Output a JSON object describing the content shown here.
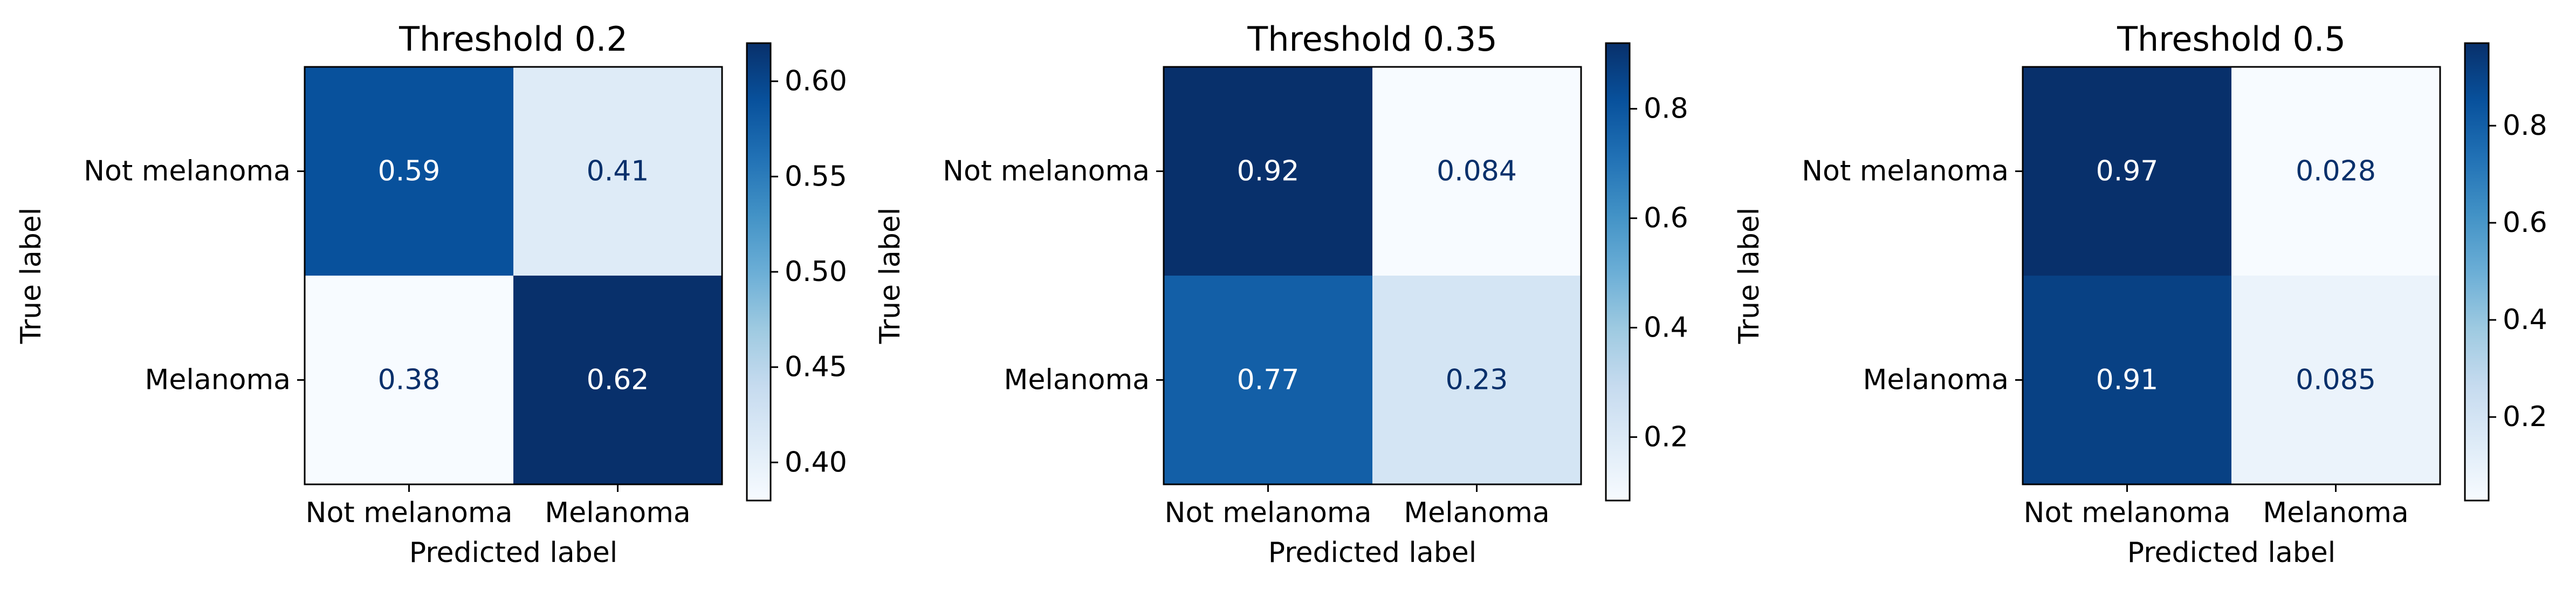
{
  "chart_data": [
    {
      "type": "heatmap",
      "title": "Threshold 0.2",
      "xlabel": "Predicted label",
      "ylabel": "True label",
      "x_categories": [
        "Not melanoma",
        "Melanoma"
      ],
      "y_categories": [
        "Not melanoma",
        "Melanoma"
      ],
      "values": [
        [
          0.59,
          0.41
        ],
        [
          0.38,
          0.62
        ]
      ],
      "value_labels": [
        [
          "0.59",
          "0.41"
        ],
        [
          "0.38",
          "0.62"
        ]
      ],
      "colormap": "Blues",
      "colorbar": {
        "range": [
          0.38,
          0.62
        ],
        "ticks": [
          0.4,
          0.45,
          0.5,
          0.55,
          0.6
        ],
        "tick_labels": [
          "0.40",
          "0.45",
          "0.50",
          "0.55",
          "0.60"
        ]
      }
    },
    {
      "type": "heatmap",
      "title": "Threshold 0.35",
      "xlabel": "Predicted label",
      "ylabel": "True label",
      "x_categories": [
        "Not melanoma",
        "Melanoma"
      ],
      "y_categories": [
        "Not melanoma",
        "Melanoma"
      ],
      "values": [
        [
          0.92,
          0.084
        ],
        [
          0.77,
          0.23
        ]
      ],
      "value_labels": [
        [
          "0.92",
          "0.084"
        ],
        [
          "0.77",
          "0.23"
        ]
      ],
      "colormap": "Blues",
      "colorbar": {
        "range": [
          0.084,
          0.92
        ],
        "ticks": [
          0.2,
          0.4,
          0.6,
          0.8
        ],
        "tick_labels": [
          "0.2",
          "0.4",
          "0.6",
          "0.8"
        ]
      }
    },
    {
      "type": "heatmap",
      "title": "Threshold 0.5",
      "xlabel": "Predicted label",
      "ylabel": "True label",
      "x_categories": [
        "Not melanoma",
        "Melanoma"
      ],
      "y_categories": [
        "Not melanoma",
        "Melanoma"
      ],
      "values": [
        [
          0.97,
          0.028
        ],
        [
          0.91,
          0.085
        ]
      ],
      "value_labels": [
        [
          "0.97",
          "0.028"
        ],
        [
          "0.91",
          "0.085"
        ]
      ],
      "colormap": "Blues",
      "colorbar": {
        "range": [
          0.028,
          0.97
        ],
        "ticks": [
          0.2,
          0.4,
          0.6,
          0.8
        ],
        "tick_labels": [
          "0.2",
          "0.4",
          "0.6",
          "0.8"
        ]
      }
    }
  ],
  "colors": {
    "blues_low": "#f7fbff",
    "blues_high": "#08306b",
    "text_dark": "#08306b",
    "text_light": "#ffffff",
    "axis": "#000000"
  }
}
